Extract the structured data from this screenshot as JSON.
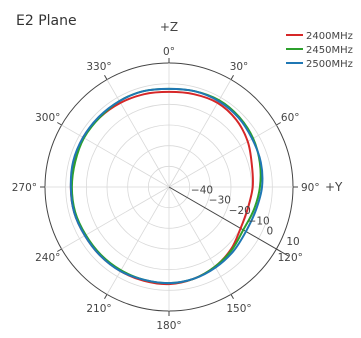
{
  "chart_data": {
    "type": "polar-line",
    "title": "E2 Plane",
    "north_label": "+Z",
    "east_label": "+Y",
    "angular_ticks": [
      0,
      30,
      60,
      90,
      120,
      150,
      180,
      210,
      240,
      270,
      300,
      330
    ],
    "angular_tick_labels": [
      "0°",
      "30°",
      "60°",
      "90°",
      "120°",
      "150°",
      "180°",
      "210°",
      "240°",
      "270°",
      "300°",
      "330°"
    ],
    "radial_range": [
      -50,
      10
    ],
    "radial_ticks": [
      -40,
      -30,
      -20,
      -10,
      0,
      10
    ],
    "radial_tick_labels": [
      "−40",
      "−30",
      "−20",
      "−10",
      "0",
      "10"
    ],
    "radial_axis_angle_deg": 120,
    "legend_position": "top-right",
    "series": [
      {
        "name": "2400MHz",
        "color": "#d62728",
        "theta": [
          0,
          15,
          30,
          45,
          60,
          75,
          90,
          105,
          120,
          135,
          150,
          165,
          180,
          195,
          210,
          225,
          240,
          255,
          270,
          285,
          300,
          315,
          330,
          345
        ],
        "r": [
          -4,
          -3.5,
          -3,
          -4,
          -6,
          -8.5,
          -9.5,
          -10.5,
          -10,
          -7.5,
          -5.5,
          -4,
          -3,
          -3,
          -3,
          -3,
          -3,
          -2.5,
          -2.5,
          -2.5,
          -2,
          -2.5,
          -3,
          -3.5
        ]
      },
      {
        "name": "2450MHz",
        "color": "#2ca02c",
        "theta": [
          0,
          15,
          30,
          45,
          60,
          75,
          90,
          105,
          120,
          135,
          150,
          165,
          180,
          195,
          210,
          225,
          240,
          255,
          270,
          285,
          300,
          315,
          330,
          345
        ],
        "r": [
          -2.5,
          -2,
          -1.5,
          -2,
          -3,
          -4.5,
          -6,
          -7.5,
          -8.5,
          -7,
          -5.5,
          -4,
          -3.5,
          -3.5,
          -3.5,
          -3.5,
          -3.5,
          -3,
          -3,
          -3,
          -2.5,
          -2.5,
          -2,
          -2
        ]
      },
      {
        "name": "2500MHz",
        "color": "#1f77b4",
        "theta": [
          0,
          15,
          30,
          45,
          60,
          75,
          90,
          105,
          120,
          135,
          150,
          165,
          180,
          195,
          210,
          225,
          240,
          255,
          270,
          285,
          300,
          315,
          330,
          345
        ],
        "r": [
          -2.5,
          -2,
          -2,
          -2.5,
          -3.5,
          -4,
          -5,
          -6.5,
          -7,
          -6,
          -5,
          -4,
          -3.5,
          -3.5,
          -3,
          -3,
          -3,
          -2.5,
          -2.5,
          -2,
          -2,
          -2,
          -2,
          -2
        ]
      }
    ]
  }
}
